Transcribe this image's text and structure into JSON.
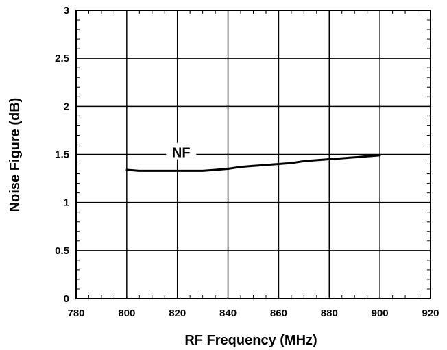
{
  "chart_data": {
    "type": "line",
    "title": "",
    "xlabel": "RF Frequency (MHz)",
    "ylabel": "Noise Figure (dB)",
    "xlim": [
      780,
      920
    ],
    "ylim": [
      0,
      3
    ],
    "x_ticks": [
      780,
      800,
      820,
      840,
      860,
      880,
      900,
      920
    ],
    "y_ticks": [
      0,
      0.5,
      1,
      1.5,
      2,
      2.5,
      3
    ],
    "x_tick_labels": [
      "780",
      "800",
      "820",
      "840",
      "860",
      "880",
      "900",
      "920"
    ],
    "y_tick_labels": [
      "0",
      "0.5",
      "1",
      "1.5",
      "2",
      "2.5",
      "3"
    ],
    "grid": true,
    "series": [
      {
        "name": "NF",
        "color": "#000000",
        "x": [
          800,
          805,
          810,
          815,
          820,
          825,
          830,
          835,
          840,
          845,
          850,
          855,
          860,
          865,
          870,
          875,
          880,
          885,
          890,
          895,
          900
        ],
        "y": [
          1.34,
          1.33,
          1.33,
          1.33,
          1.33,
          1.33,
          1.33,
          1.34,
          1.35,
          1.37,
          1.38,
          1.39,
          1.4,
          1.41,
          1.43,
          1.44,
          1.45,
          1.46,
          1.47,
          1.48,
          1.49
        ]
      }
    ],
    "annotations": [
      {
        "text": "NF",
        "x": 821.5,
        "y": 1.52
      }
    ]
  }
}
